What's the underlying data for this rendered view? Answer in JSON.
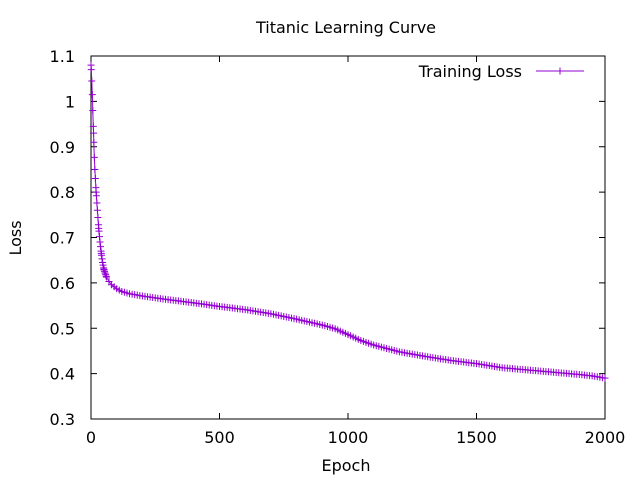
{
  "chart_data": {
    "type": "line",
    "title": "Titanic Learning Curve",
    "xlabel": "Epoch",
    "ylabel": "Loss",
    "xlim": [
      0,
      2000
    ],
    "ylim": [
      0.3,
      1.1
    ],
    "x_ticks": [
      0,
      500,
      1000,
      1500,
      2000
    ],
    "y_ticks": [
      0.3,
      0.4,
      0.5,
      0.6,
      0.7,
      0.8,
      0.9,
      1,
      1.1
    ],
    "grid": false,
    "legend_position": "top-right",
    "series": [
      {
        "name": "Training Loss",
        "color": "#9400d3",
        "marker": "plus",
        "x": [
          0,
          2,
          4,
          6,
          8,
          10,
          12,
          15,
          20,
          25,
          30,
          35,
          40,
          45,
          50,
          60,
          70,
          80,
          100,
          120,
          150,
          200,
          250,
          300,
          400,
          500,
          600,
          700,
          800,
          900,
          950,
          1000,
          1050,
          1100,
          1200,
          1300,
          1400,
          1500,
          1600,
          1700,
          1800,
          1900,
          1950,
          2000
        ],
        "y": [
          1.08,
          1.06,
          1.03,
          1.0,
          0.96,
          0.93,
          0.89,
          0.85,
          0.8,
          0.76,
          0.72,
          0.69,
          0.665,
          0.645,
          0.63,
          0.613,
          0.603,
          0.596,
          0.587,
          0.581,
          0.576,
          0.571,
          0.567,
          0.563,
          0.556,
          0.548,
          0.541,
          0.532,
          0.52,
          0.507,
          0.499,
          0.486,
          0.473,
          0.463,
          0.448,
          0.438,
          0.429,
          0.422,
          0.413,
          0.408,
          0.403,
          0.398,
          0.395,
          0.39
        ]
      }
    ]
  }
}
